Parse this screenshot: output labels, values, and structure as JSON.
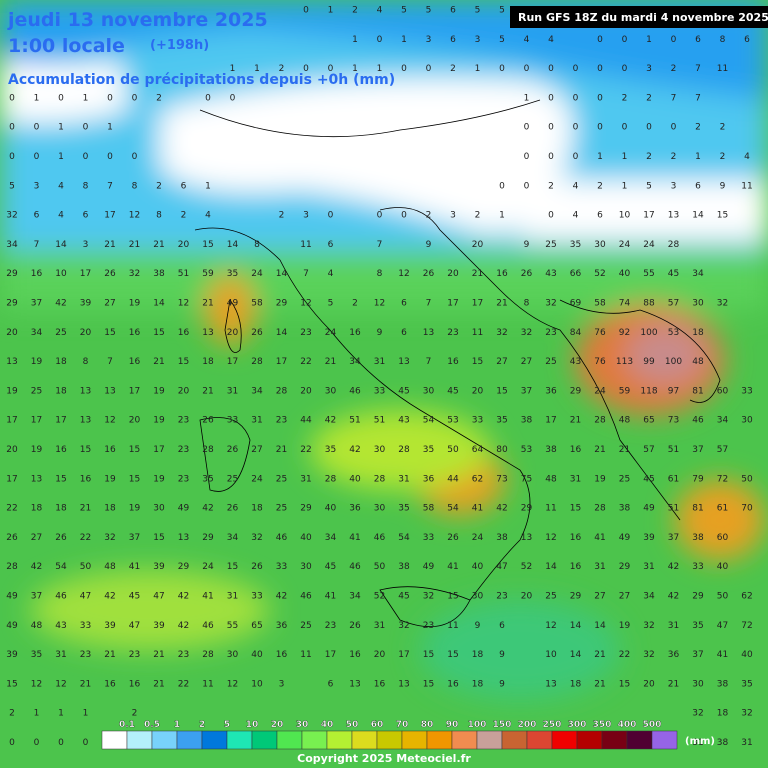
{
  "header": {
    "date": "jeudi 13 novembre 2025",
    "time": "1:00 locale",
    "lead": "(+198h)",
    "subtitle": "Accumulation de précipitations depuis +0h (mm)",
    "run": "Run GFS 18Z du mardi 4 novembre 2025"
  },
  "grid": [
    [
      null,
      null,
      null,
      null,
      null,
      null,
      null,
      null,
      null,
      null,
      null,
      null,
      0,
      1,
      2,
      4,
      5,
      5,
      6,
      5,
      5,
      null,
      null,
      null,
      null,
      null,
      null,
      null,
      null,
      null,
      null
    ],
    [
      null,
      null,
      null,
      null,
      null,
      null,
      null,
      null,
      null,
      null,
      null,
      null,
      null,
      null,
      1,
      0,
      1,
      3,
      6,
      3,
      5,
      4,
      4,
      null,
      0,
      0,
      1,
      0,
      6,
      8,
      6
    ],
    [
      null,
      null,
      null,
      null,
      null,
      null,
      null,
      null,
      null,
      1,
      1,
      2,
      0,
      0,
      1,
      1,
      0,
      0,
      2,
      1,
      0,
      0,
      0,
      0,
      0,
      0,
      3,
      2,
      7,
      11,
      null
    ],
    [
      0,
      1,
      0,
      1,
      0,
      0,
      2,
      null,
      0,
      0,
      null,
      null,
      null,
      null,
      null,
      null,
      null,
      null,
      null,
      null,
      null,
      1,
      0,
      0,
      0,
      2,
      2,
      7,
      7,
      null,
      null
    ],
    [
      0,
      0,
      1,
      0,
      1,
      null,
      null,
      null,
      null,
      null,
      null,
      null,
      null,
      null,
      null,
      null,
      null,
      null,
      null,
      null,
      null,
      0,
      0,
      0,
      0,
      0,
      0,
      0,
      2,
      2,
      null
    ],
    [
      0,
      0,
      1,
      0,
      0,
      0,
      null,
      null,
      null,
      null,
      null,
      null,
      null,
      null,
      null,
      null,
      null,
      null,
      null,
      null,
      null,
      0,
      0,
      0,
      1,
      1,
      2,
      2,
      1,
      2,
      4
    ],
    [
      5,
      3,
      4,
      8,
      7,
      8,
      2,
      6,
      1,
      null,
      null,
      null,
      null,
      null,
      null,
      null,
      null,
      null,
      null,
      null,
      0,
      0,
      2,
      4,
      2,
      1,
      5,
      3,
      6,
      9,
      11
    ],
    [
      32,
      6,
      4,
      6,
      17,
      12,
      8,
      2,
      4,
      null,
      null,
      2,
      3,
      0,
      null,
      0,
      0,
      2,
      3,
      2,
      1,
      null,
      0,
      4,
      6,
      10,
      17,
      13,
      14,
      15,
      null
    ],
    [
      34,
      7,
      14,
      3,
      21,
      21,
      21,
      20,
      15,
      14,
      8,
      null,
      11,
      6,
      null,
      7,
      null,
      9,
      null,
      20,
      null,
      9,
      25,
      35,
      30,
      24,
      24,
      28,
      null,
      null,
      null
    ],
    [
      29,
      16,
      10,
      17,
      26,
      32,
      38,
      51,
      59,
      35,
      24,
      14,
      7,
      4,
      null,
      8,
      12,
      26,
      20,
      21,
      16,
      26,
      43,
      66,
      52,
      40,
      55,
      45,
      34,
      null,
      null
    ],
    [
      29,
      37,
      42,
      39,
      27,
      19,
      14,
      12,
      21,
      49,
      58,
      29,
      12,
      5,
      2,
      12,
      6,
      7,
      17,
      17,
      21,
      8,
      32,
      69,
      58,
      74,
      88,
      57,
      30,
      32,
      null
    ],
    [
      20,
      34,
      25,
      20,
      15,
      16,
      15,
      16,
      13,
      20,
      26,
      14,
      23,
      24,
      16,
      9,
      6,
      13,
      23,
      11,
      32,
      32,
      23,
      84,
      76,
      92,
      100,
      53,
      18,
      null,
      null
    ],
    [
      13,
      19,
      18,
      8,
      7,
      16,
      21,
      15,
      18,
      17,
      28,
      17,
      22,
      21,
      34,
      31,
      13,
      7,
      16,
      15,
      27,
      27,
      25,
      43,
      76,
      113,
      99,
      100,
      48,
      null,
      null
    ],
    [
      19,
      25,
      18,
      13,
      13,
      17,
      19,
      20,
      21,
      31,
      34,
      28,
      20,
      30,
      46,
      33,
      45,
      30,
      45,
      20,
      15,
      37,
      36,
      29,
      24,
      59,
      118,
      97,
      81,
      60,
      33
    ],
    [
      17,
      17,
      17,
      13,
      12,
      20,
      19,
      23,
      26,
      33,
      31,
      23,
      44,
      42,
      51,
      51,
      43,
      54,
      53,
      33,
      35,
      38,
      17,
      21,
      28,
      48,
      65,
      73,
      46,
      34,
      30
    ],
    [
      20,
      19,
      16,
      15,
      16,
      15,
      17,
      23,
      28,
      26,
      27,
      21,
      22,
      35,
      42,
      30,
      28,
      35,
      50,
      64,
      80,
      53,
      38,
      16,
      21,
      21,
      57,
      51,
      37,
      57,
      null
    ],
    [
      17,
      13,
      15,
      16,
      19,
      15,
      19,
      23,
      35,
      25,
      24,
      25,
      31,
      28,
      40,
      28,
      31,
      36,
      44,
      62,
      73,
      75,
      48,
      31,
      19,
      25,
      45,
      61,
      79,
      72,
      50
    ],
    [
      22,
      18,
      18,
      21,
      18,
      19,
      30,
      49,
      42,
      26,
      18,
      25,
      29,
      40,
      36,
      30,
      35,
      58,
      54,
      41,
      42,
      29,
      11,
      15,
      28,
      38,
      49,
      51,
      81,
      61,
      70
    ],
    [
      26,
      27,
      26,
      22,
      32,
      37,
      15,
      13,
      29,
      34,
      32,
      46,
      40,
      34,
      41,
      46,
      54,
      33,
      26,
      24,
      38,
      13,
      12,
      16,
      41,
      49,
      39,
      37,
      38,
      60,
      null
    ],
    [
      28,
      42,
      54,
      50,
      48,
      41,
      39,
      29,
      24,
      15,
      26,
      33,
      30,
      45,
      46,
      50,
      38,
      49,
      41,
      40,
      47,
      52,
      14,
      16,
      31,
      29,
      31,
      42,
      33,
      40,
      null
    ],
    [
      49,
      37,
      46,
      47,
      42,
      45,
      47,
      42,
      41,
      31,
      33,
      42,
      46,
      41,
      34,
      52,
      45,
      32,
      15,
      30,
      23,
      20,
      25,
      29,
      27,
      27,
      34,
      42,
      29,
      50,
      62
    ],
    [
      49,
      48,
      43,
      33,
      39,
      47,
      39,
      42,
      46,
      55,
      65,
      36,
      25,
      23,
      26,
      31,
      32,
      23,
      11,
      9,
      6,
      null,
      12,
      14,
      14,
      19,
      32,
      31,
      35,
      47,
      72
    ],
    [
      39,
      35,
      31,
      23,
      21,
      23,
      21,
      23,
      28,
      30,
      40,
      16,
      11,
      17,
      16,
      20,
      17,
      15,
      15,
      18,
      9,
      null,
      10,
      14,
      21,
      22,
      32,
      36,
      37,
      41,
      40
    ],
    [
      15,
      12,
      12,
      21,
      16,
      16,
      21,
      22,
      11,
      12,
      10,
      3,
      null,
      6,
      13,
      16,
      13,
      15,
      16,
      18,
      9,
      null,
      13,
      18,
      21,
      15,
      20,
      21,
      30,
      38,
      35
    ],
    [
      2,
      1,
      1,
      1,
      null,
      2,
      null,
      null,
      null,
      null,
      null,
      null,
      null,
      null,
      null,
      null,
      null,
      null,
      null,
      null,
      null,
      null,
      null,
      null,
      null,
      null,
      null,
      null,
      32,
      18,
      32
    ],
    [
      0,
      0,
      0,
      0,
      null,
      null,
      null,
      null,
      null,
      null,
      null,
      null,
      null,
      null,
      null,
      null,
      null,
      null,
      null,
      null,
      null,
      null,
      null,
      null,
      null,
      null,
      null,
      null,
      31,
      38,
      31
    ]
  ],
  "legend": {
    "labels": [
      "0.1",
      "0.5",
      "1",
      "2",
      "5",
      "10",
      "20",
      "30",
      "40",
      "50",
      "60",
      "70",
      "80",
      "90",
      "100",
      "150",
      "200",
      "250",
      "300",
      "350",
      "400",
      "500"
    ],
    "colors": [
      "#ffffff",
      "#b4f0fa",
      "#78d2fa",
      "#3ca0f0",
      "#0078dc",
      "#1ee6b4",
      "#00c878",
      "#50e650",
      "#78f050",
      "#b4f032",
      "#dcdc1e",
      "#c8c800",
      "#e6b400",
      "#f09600",
      "#f08c50",
      "#c8a09a",
      "#c86432",
      "#dc4632",
      "#f00000",
      "#b40000",
      "#780014",
      "#500032",
      "#9664e6"
    ],
    "unit": "(mm)"
  },
  "footer": "Copyright 2025 Meteociel.fr"
}
